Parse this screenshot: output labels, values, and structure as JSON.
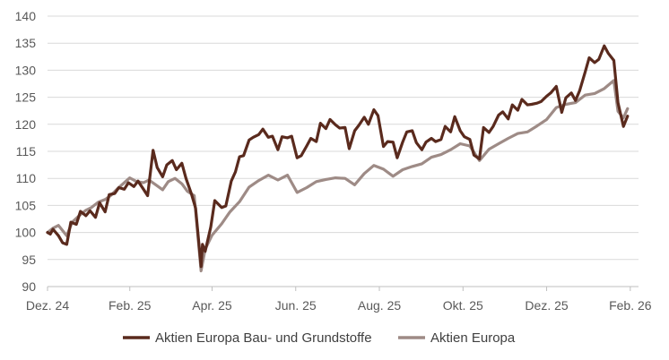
{
  "chart_data": {
    "type": "line",
    "title": "",
    "xlabel": "",
    "ylabel": "",
    "ylim": [
      90,
      140
    ],
    "yticks": [
      90,
      95,
      100,
      105,
      110,
      115,
      120,
      125,
      130,
      135,
      140
    ],
    "xlim": [
      "2024-12-16",
      "2026-02-20"
    ],
    "xticks": [
      {
        "date": "2024-12-16",
        "label": "Dez. 24"
      },
      {
        "date": "2025-02-14",
        "label": "Feb. 25"
      },
      {
        "date": "2025-04-15",
        "label": "Apr. 25"
      },
      {
        "date": "2025-06-15",
        "label": "Jun. 25"
      },
      {
        "date": "2025-08-15",
        "label": "Aug. 25"
      },
      {
        "date": "2025-10-15",
        "label": "Okt. 25"
      },
      {
        "date": "2025-12-15",
        "label": "Dez. 25"
      },
      {
        "date": "2026-02-14",
        "label": "Feb. 26"
      }
    ],
    "grid": "horizontal",
    "legend_position": "bottom",
    "series": [
      {
        "name": "Aktien Europa Bau- und Grundstoffe",
        "color": "#5a2a1d",
        "points": [
          [
            "2024-12-16",
            100
          ],
          [
            "2024-12-18",
            99.7
          ],
          [
            "2024-12-20",
            100.6
          ],
          [
            "2024-12-24",
            99.4
          ],
          [
            "2024-12-27",
            98.1
          ],
          [
            "2024-12-30",
            97.8
          ],
          [
            "2025-01-02",
            101.9
          ],
          [
            "2025-01-06",
            101.5
          ],
          [
            "2025-01-09",
            103.9
          ],
          [
            "2025-01-13",
            103.1
          ],
          [
            "2025-01-16",
            104.0
          ],
          [
            "2025-01-20",
            102.8
          ],
          [
            "2025-01-23",
            105.5
          ],
          [
            "2025-01-27",
            103.8
          ],
          [
            "2025-01-30",
            107.0
          ],
          [
            "2025-02-03",
            107.2
          ],
          [
            "2025-02-06",
            108.3
          ],
          [
            "2025-02-10",
            108.0
          ],
          [
            "2025-02-13",
            109.2
          ],
          [
            "2025-02-17",
            108.5
          ],
          [
            "2025-02-20",
            109.5
          ],
          [
            "2025-02-24",
            108.0
          ],
          [
            "2025-02-27",
            106.8
          ],
          [
            "2025-03-03",
            115.2
          ],
          [
            "2025-03-06",
            112.0
          ],
          [
            "2025-03-10",
            110.3
          ],
          [
            "2025-03-13",
            112.5
          ],
          [
            "2025-03-17",
            113.3
          ],
          [
            "2025-03-20",
            111.6
          ],
          [
            "2025-03-24",
            112.8
          ],
          [
            "2025-03-27",
            110.0
          ],
          [
            "2025-03-31",
            107.1
          ],
          [
            "2025-04-03",
            104.5
          ],
          [
            "2025-04-07",
            93.7
          ],
          [
            "2025-04-08",
            97.8
          ],
          [
            "2025-04-10",
            96.5
          ],
          [
            "2025-04-14",
            101.0
          ],
          [
            "2025-04-17",
            105.9
          ],
          [
            "2025-04-22",
            104.6
          ],
          [
            "2025-04-25",
            104.9
          ],
          [
            "2025-04-29",
            109.5
          ],
          [
            "2025-05-02",
            111.2
          ],
          [
            "2025-05-05",
            114.0
          ],
          [
            "2025-05-08",
            114.2
          ],
          [
            "2025-05-12",
            117.1
          ],
          [
            "2025-05-15",
            117.6
          ],
          [
            "2025-05-19",
            118.1
          ],
          [
            "2025-05-22",
            119.1
          ],
          [
            "2025-05-26",
            117.6
          ],
          [
            "2025-05-29",
            117.8
          ],
          [
            "2025-06-02",
            115.3
          ],
          [
            "2025-06-05",
            117.7
          ],
          [
            "2025-06-09",
            117.5
          ],
          [
            "2025-06-12",
            117.8
          ],
          [
            "2025-06-16",
            113.8
          ],
          [
            "2025-06-19",
            114.2
          ],
          [
            "2025-06-23",
            116.0
          ],
          [
            "2025-06-26",
            117.4
          ],
          [
            "2025-06-30",
            116.8
          ],
          [
            "2025-07-03",
            120.2
          ],
          [
            "2025-07-07",
            119.2
          ],
          [
            "2025-07-10",
            120.9
          ],
          [
            "2025-07-14",
            119.9
          ],
          [
            "2025-07-17",
            119.3
          ],
          [
            "2025-07-21",
            119.4
          ],
          [
            "2025-07-24",
            115.5
          ],
          [
            "2025-07-28",
            118.8
          ],
          [
            "2025-07-31",
            119.8
          ],
          [
            "2025-08-04",
            121.3
          ],
          [
            "2025-08-07",
            120.0
          ],
          [
            "2025-08-11",
            122.7
          ],
          [
            "2025-08-14",
            121.6
          ],
          [
            "2025-08-18",
            115.9
          ],
          [
            "2025-08-21",
            116.8
          ],
          [
            "2025-08-25",
            116.7
          ],
          [
            "2025-08-28",
            113.8
          ],
          [
            "2025-09-01",
            116.7
          ],
          [
            "2025-09-04",
            118.6
          ],
          [
            "2025-09-08",
            118.8
          ],
          [
            "2025-09-11",
            116.6
          ],
          [
            "2025-09-15",
            115.3
          ],
          [
            "2025-09-18",
            116.7
          ],
          [
            "2025-09-22",
            117.4
          ],
          [
            "2025-09-25",
            116.8
          ],
          [
            "2025-09-29",
            117.2
          ],
          [
            "2025-10-02",
            119.6
          ],
          [
            "2025-10-06",
            118.6
          ],
          [
            "2025-10-09",
            121.4
          ],
          [
            "2025-10-13",
            118.8
          ],
          [
            "2025-10-16",
            117.7
          ],
          [
            "2025-10-20",
            117.2
          ],
          [
            "2025-10-23",
            114.3
          ],
          [
            "2025-10-27",
            113.6
          ],
          [
            "2025-10-30",
            119.4
          ],
          [
            "2025-11-03",
            118.5
          ],
          [
            "2025-11-06",
            119.6
          ],
          [
            "2025-11-10",
            121.7
          ],
          [
            "2025-11-13",
            122.3
          ],
          [
            "2025-11-17",
            121.0
          ],
          [
            "2025-11-20",
            123.6
          ],
          [
            "2025-11-24",
            122.6
          ],
          [
            "2025-11-27",
            124.6
          ],
          [
            "2025-12-01",
            123.6
          ],
          [
            "2025-12-04",
            123.7
          ],
          [
            "2025-12-08",
            123.9
          ],
          [
            "2025-12-11",
            124.2
          ],
          [
            "2025-12-15",
            125.2
          ],
          [
            "2025-12-18",
            125.8
          ],
          [
            "2025-12-22",
            127.0
          ],
          [
            "2025-12-26",
            122.2
          ],
          [
            "2025-12-29",
            124.9
          ],
          [
            "2026-01-02",
            125.8
          ],
          [
            "2026-01-05",
            124.4
          ],
          [
            "2026-01-08",
            126.2
          ],
          [
            "2026-01-12",
            129.6
          ],
          [
            "2026-01-15",
            132.3
          ],
          [
            "2026-01-19",
            131.4
          ],
          [
            "2026-01-22",
            132.0
          ],
          [
            "2026-01-26",
            134.5
          ],
          [
            "2026-01-29",
            133.1
          ],
          [
            "2026-02-02",
            131.8
          ],
          [
            "2026-02-05",
            124.0
          ],
          [
            "2026-02-09",
            119.6
          ],
          [
            "2026-02-12",
            121.5
          ]
        ]
      },
      {
        "name": "Aktien Europa",
        "color": "#9e8b86",
        "points": [
          [
            "2024-12-16",
            100
          ],
          [
            "2024-12-20",
            100.8
          ],
          [
            "2024-12-24",
            101.3
          ],
          [
            "2024-12-30",
            99.4
          ],
          [
            "2025-01-03",
            101.9
          ],
          [
            "2025-01-08",
            103.1
          ],
          [
            "2025-01-13",
            104.1
          ],
          [
            "2025-01-17",
            104.6
          ],
          [
            "2025-01-22",
            105.6
          ],
          [
            "2025-01-27",
            106.1
          ],
          [
            "2025-01-31",
            106.8
          ],
          [
            "2025-02-05",
            108.1
          ],
          [
            "2025-02-10",
            109.2
          ],
          [
            "2025-02-14",
            110.1
          ],
          [
            "2025-02-19",
            109.4
          ],
          [
            "2025-02-24",
            109.2
          ],
          [
            "2025-02-28",
            109.7
          ],
          [
            "2025-03-05",
            108.8
          ],
          [
            "2025-03-10",
            107.9
          ],
          [
            "2025-03-14",
            109.4
          ],
          [
            "2025-03-19",
            110.0
          ],
          [
            "2025-03-24",
            109.0
          ],
          [
            "2025-03-28",
            107.6
          ],
          [
            "2025-04-02",
            106.8
          ],
          [
            "2025-04-07",
            92.9
          ],
          [
            "2025-04-10",
            96.9
          ],
          [
            "2025-04-15",
            99.5
          ],
          [
            "2025-04-22",
            101.6
          ],
          [
            "2025-04-28",
            103.8
          ],
          [
            "2025-05-05",
            105.7
          ],
          [
            "2025-05-12",
            108.4
          ],
          [
            "2025-05-19",
            109.6
          ],
          [
            "2025-05-26",
            110.6
          ],
          [
            "2025-06-02",
            109.7
          ],
          [
            "2025-06-09",
            110.6
          ],
          [
            "2025-06-16",
            107.4
          ],
          [
            "2025-06-23",
            108.3
          ],
          [
            "2025-06-30",
            109.4
          ],
          [
            "2025-07-07",
            109.8
          ],
          [
            "2025-07-14",
            110.1
          ],
          [
            "2025-07-21",
            110.0
          ],
          [
            "2025-07-28",
            108.8
          ],
          [
            "2025-08-04",
            110.9
          ],
          [
            "2025-08-11",
            112.4
          ],
          [
            "2025-08-18",
            111.7
          ],
          [
            "2025-08-25",
            110.4
          ],
          [
            "2025-09-01",
            111.6
          ],
          [
            "2025-09-08",
            112.2
          ],
          [
            "2025-09-15",
            112.7
          ],
          [
            "2025-09-22",
            113.9
          ],
          [
            "2025-09-29",
            114.4
          ],
          [
            "2025-10-06",
            115.3
          ],
          [
            "2025-10-13",
            116.4
          ],
          [
            "2025-10-20",
            116.0
          ],
          [
            "2025-10-27",
            113.3
          ],
          [
            "2025-11-03",
            115.4
          ],
          [
            "2025-11-10",
            116.4
          ],
          [
            "2025-11-17",
            117.4
          ],
          [
            "2025-11-24",
            118.3
          ],
          [
            "2025-12-01",
            118.6
          ],
          [
            "2025-12-08",
            119.7
          ],
          [
            "2025-12-15",
            120.9
          ],
          [
            "2025-12-22",
            123.1
          ],
          [
            "2025-12-29",
            123.7
          ],
          [
            "2026-01-05",
            124.0
          ],
          [
            "2026-01-12",
            125.4
          ],
          [
            "2026-01-19",
            125.7
          ],
          [
            "2026-01-26",
            126.6
          ],
          [
            "2026-02-02",
            128.1
          ],
          [
            "2026-02-05",
            122.4
          ],
          [
            "2026-02-09",
            121.2
          ],
          [
            "2026-02-12",
            122.9
          ]
        ]
      }
    ]
  }
}
